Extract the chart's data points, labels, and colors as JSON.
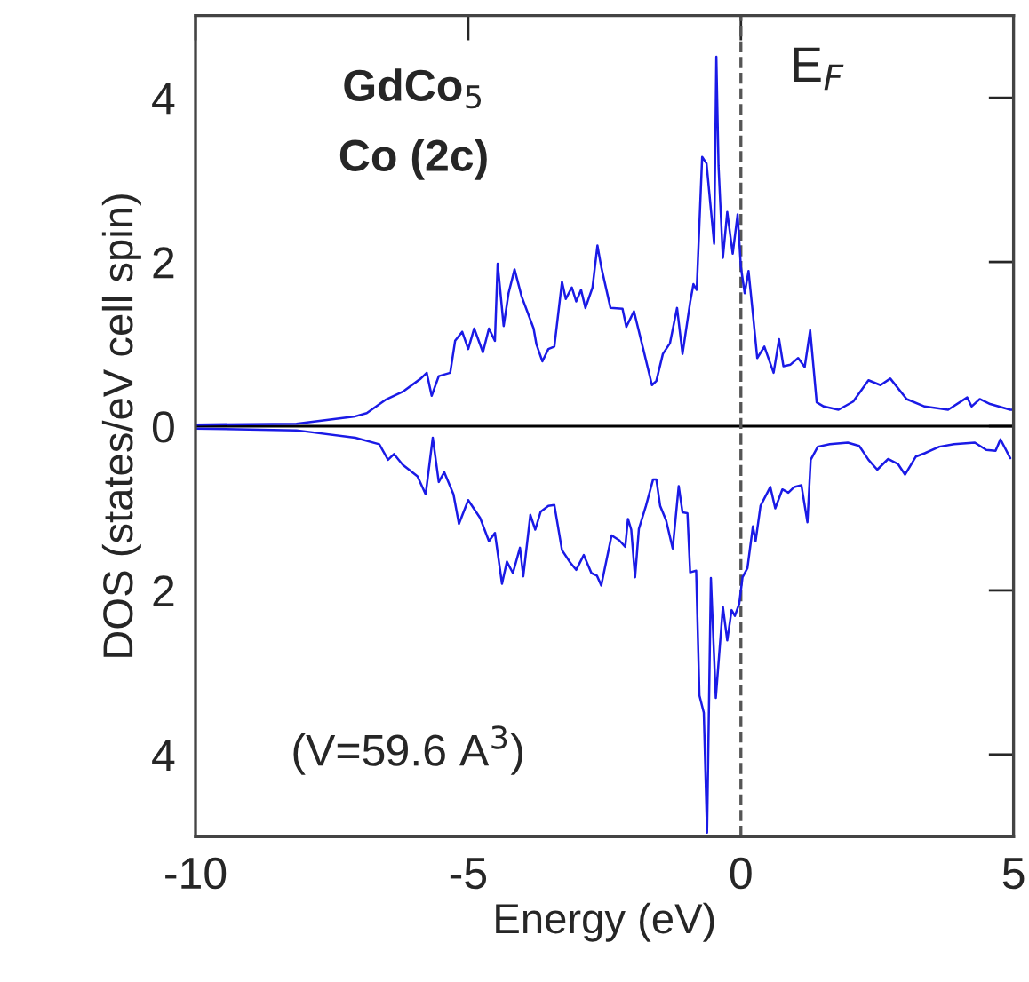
{
  "chart_data": {
    "type": "line",
    "xlabel": "Energy (eV)",
    "ylabel": "DOS (states/eV cell spin)",
    "xlim": [
      -10,
      5
    ],
    "xticks": [
      -10,
      -5,
      0,
      5
    ],
    "ylim": [
      -5,
      5
    ],
    "yticks": [
      {
        "value": -4,
        "label": "4"
      },
      {
        "value": -2,
        "label": "2"
      },
      0,
      2,
      4
    ],
    "grid": false,
    "marker": "none",
    "line_style": "solid",
    "ref_lines": [
      {
        "axis": "y",
        "value": 0,
        "color": "#000000",
        "line_style": "solid"
      },
      {
        "axis": "x",
        "value": 0,
        "label": "E$_{F}$",
        "color": "#555555",
        "line_style": "dashed"
      }
    ],
    "annotations": [
      "GdCo$_{5}$",
      "Co (2c)",
      "(V=59.6 A$^{3}$)"
    ],
    "series": [
      {
        "color": "#1a1ae6",
        "x": [
          -10,
          -8.15,
          -7.07,
          -6.86,
          -6.52,
          -6.2,
          -5.87,
          -5.76,
          -5.67,
          -5.54,
          -5.33,
          -5.24,
          -5.11,
          -5.0,
          -4.89,
          -4.73,
          -4.62,
          -4.51,
          -4.46,
          -4.35,
          -4.26,
          -4.15,
          -4.02,
          -3.8,
          -3.75,
          -3.64,
          -3.53,
          -3.42,
          -3.28,
          -3.21,
          -3.1,
          -3.02,
          -2.93,
          -2.85,
          -2.72,
          -2.63,
          -2.56,
          -2.39,
          -2.17,
          -2.1,
          -1.96,
          -1.79,
          -1.63,
          -1.55,
          -1.43,
          -1.3,
          -1.17,
          -1.07,
          -0.93,
          -0.87,
          -0.81,
          -0.71,
          -0.63,
          -0.49,
          -0.45,
          -0.41,
          -0.33,
          -0.25,
          -0.15,
          -0.06,
          0.0,
          0.07,
          0.14,
          0.22,
          0.3,
          0.43,
          0.6,
          0.7,
          0.78,
          0.91,
          1.05,
          1.17,
          1.27,
          1.39,
          1.52,
          1.79,
          2.06,
          2.34,
          2.56,
          2.74,
          3.04,
          3.37,
          3.8,
          4.15,
          4.23,
          4.38,
          4.57,
          4.94,
          5.0
        ],
        "values": [
          0.02,
          0.03,
          0.12,
          0.16,
          0.32,
          0.42,
          0.58,
          0.65,
          0.37,
          0.61,
          0.65,
          1.04,
          1.15,
          0.94,
          1.19,
          0.9,
          1.19,
          1.04,
          1.98,
          1.22,
          1.62,
          1.91,
          1.58,
          1.19,
          1.0,
          0.79,
          0.94,
          0.97,
          1.76,
          1.55,
          1.69,
          1.52,
          1.66,
          1.44,
          1.69,
          2.2,
          1.94,
          1.44,
          1.43,
          1.21,
          1.4,
          0.94,
          0.5,
          0.55,
          0.88,
          1.01,
          1.44,
          0.88,
          1.51,
          1.73,
          1.66,
          3.28,
          3.2,
          2.22,
          4.5,
          3.17,
          2.05,
          2.61,
          2.1,
          2.58,
          1.94,
          1.62,
          1.89,
          1.37,
          0.83,
          0.97,
          0.65,
          1.06,
          0.73,
          0.75,
          0.83,
          0.72,
          1.17,
          0.29,
          0.24,
          0.2,
          0.3,
          0.56,
          0.5,
          0.58,
          0.33,
          0.24,
          0.2,
          0.35,
          0.24,
          0.33,
          0.27,
          0.2,
          0.2
        ]
      },
      {
        "color": "#1a1ae6",
        "x": [
          -10,
          -8.15,
          -7.07,
          -6.63,
          -6.47,
          -6.36,
          -6.2,
          -5.93,
          -5.78,
          -5.65,
          -5.54,
          -5.44,
          -5.27,
          -5.17,
          -5.0,
          -4.78,
          -4.62,
          -4.51,
          -4.38,
          -4.29,
          -4.18,
          -4.05,
          -3.99,
          -3.86,
          -3.77,
          -3.67,
          -3.53,
          -3.42,
          -3.28,
          -3.13,
          -3.02,
          -2.88,
          -2.74,
          -2.64,
          -2.56,
          -2.37,
          -2.23,
          -2.12,
          -2.07,
          -2.01,
          -1.94,
          -1.87,
          -1.74,
          -1.61,
          -1.55,
          -1.48,
          -1.37,
          -1.25,
          -1.14,
          -1.07,
          -0.98,
          -0.93,
          -0.82,
          -0.76,
          -0.68,
          -0.62,
          -0.55,
          -0.46,
          -0.33,
          -0.25,
          -0.17,
          -0.11,
          -0.03,
          0.03,
          0.12,
          0.22,
          0.27,
          0.36,
          0.54,
          0.63,
          0.76,
          0.87,
          0.98,
          1.11,
          1.22,
          1.28,
          1.41,
          1.63,
          1.96,
          2.17,
          2.34,
          2.5,
          2.7,
          2.88,
          3.01,
          3.21,
          3.37,
          3.64,
          3.91,
          4.29,
          4.5,
          4.67,
          4.76,
          4.94
        ],
        "values": [
          -0.03,
          -0.05,
          -0.14,
          -0.22,
          -0.41,
          -0.34,
          -0.47,
          -0.61,
          -0.83,
          -0.14,
          -0.68,
          -0.56,
          -0.83,
          -1.19,
          -0.9,
          -1.12,
          -1.4,
          -1.3,
          -1.92,
          -1.65,
          -1.79,
          -1.48,
          -1.83,
          -1.08,
          -1.26,
          -1.04,
          -0.97,
          -0.96,
          -1.51,
          -1.66,
          -1.75,
          -1.57,
          -1.79,
          -1.82,
          -1.94,
          -1.33,
          -1.39,
          -1.47,
          -1.13,
          -1.26,
          -1.84,
          -1.25,
          -0.97,
          -0.65,
          -0.65,
          -0.97,
          -1.15,
          -1.49,
          -0.73,
          -1.05,
          -1.06,
          -1.78,
          -1.76,
          -3.28,
          -3.49,
          -4.95,
          -1.85,
          -3.31,
          -2.2,
          -2.61,
          -2.24,
          -2.31,
          -2.16,
          -1.84,
          -1.73,
          -1.22,
          -1.4,
          -0.97,
          -0.74,
          -1.0,
          -0.77,
          -0.81,
          -0.74,
          -0.72,
          -1.17,
          -0.41,
          -0.25,
          -0.22,
          -0.2,
          -0.24,
          -0.41,
          -0.53,
          -0.4,
          -0.46,
          -0.59,
          -0.37,
          -0.33,
          -0.25,
          -0.22,
          -0.2,
          -0.29,
          -0.3,
          -0.16,
          -0.39
        ]
      }
    ]
  }
}
